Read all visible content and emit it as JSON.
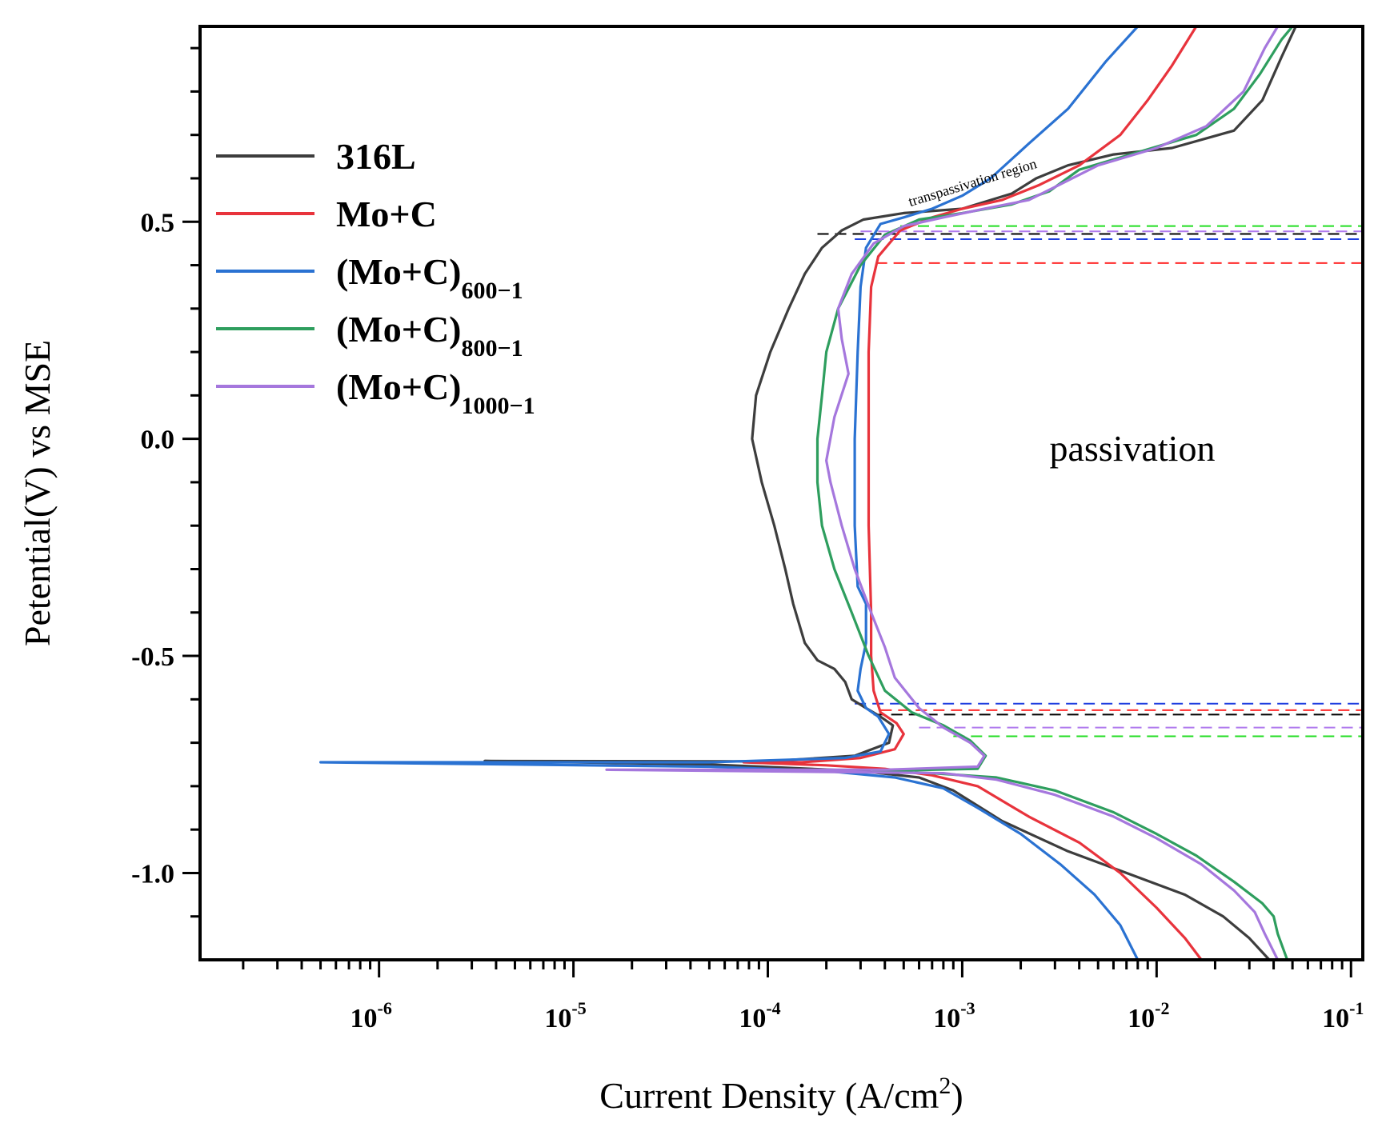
{
  "chart_data": {
    "type": "line",
    "title": "",
    "xlabel": "Current Density (A/cm",
    "xlabel_sup": "2",
    "xlabel_end": ")",
    "ylabel": "Petential(V) vs MSE",
    "xscale": "log",
    "xlim": [
      1.2e-07,
      0.115
    ],
    "ylim": [
      -1.2,
      0.95
    ],
    "x_ticks": [
      {
        "value": 1e-06,
        "base": "10",
        "exp": "-6"
      },
      {
        "value": 1e-05,
        "base": "10",
        "exp": "-5"
      },
      {
        "value": 0.0001,
        "base": "10",
        "exp": "-4"
      },
      {
        "value": 0.001,
        "base": "10",
        "exp": "-3"
      },
      {
        "value": 0.01,
        "base": "10",
        "exp": "-2"
      },
      {
        "value": 0.1,
        "base": "10",
        "exp": "-1"
      }
    ],
    "y_ticks": [
      {
        "value": 0.5,
        "label": "0.5"
      },
      {
        "value": 0.0,
        "label": "0.0"
      },
      {
        "value": -0.5,
        "label": "-0.5"
      },
      {
        "value": -1.0,
        "label": "-1.0"
      }
    ],
    "legend": {
      "position": "top-left"
    },
    "series": [
      {
        "name": "316L",
        "name_sub": "",
        "color": "#3d3d3d",
        "points": [
          [
            0.038,
            -1.2
          ],
          [
            0.03,
            -1.15
          ],
          [
            0.022,
            -1.1
          ],
          [
            0.014,
            -1.05
          ],
          [
            0.007,
            -1.0
          ],
          [
            0.0035,
            -0.95
          ],
          [
            0.0016,
            -0.88
          ],
          [
            0.0009,
            -0.81
          ],
          [
            0.0006,
            -0.78
          ],
          [
            0.0003,
            -0.765
          ],
          [
            5e-05,
            -0.75
          ],
          [
            3.5e-06,
            -0.742
          ],
          [
            0.0001,
            -0.743
          ],
          [
            0.00028,
            -0.73
          ],
          [
            0.00042,
            -0.7
          ],
          [
            0.00044,
            -0.66
          ],
          [
            0.00038,
            -0.64
          ],
          [
            0.00032,
            -0.62
          ],
          [
            0.00027,
            -0.6
          ],
          [
            0.00025,
            -0.56
          ],
          [
            0.00022,
            -0.53
          ],
          [
            0.00018,
            -0.51
          ],
          [
            0.000155,
            -0.47
          ],
          [
            0.000135,
            -0.38
          ],
          [
            0.000123,
            -0.3
          ],
          [
            0.000108,
            -0.2
          ],
          [
            9.3e-05,
            -0.1
          ],
          [
            8.3e-05,
            0.0
          ],
          [
            8.7e-05,
            0.1
          ],
          [
            0.000103,
            0.2
          ],
          [
            0.000128,
            0.3
          ],
          [
            0.000155,
            0.38
          ],
          [
            0.00019,
            0.44
          ],
          [
            0.00024,
            0.48
          ],
          [
            0.00031,
            0.505
          ],
          [
            0.0005,
            0.52
          ],
          [
            0.001,
            0.53
          ],
          [
            0.0018,
            0.565
          ],
          [
            0.0024,
            0.6
          ],
          [
            0.0035,
            0.63
          ],
          [
            0.006,
            0.655
          ],
          [
            0.012,
            0.67
          ],
          [
            0.025,
            0.71
          ],
          [
            0.035,
            0.78
          ],
          [
            0.044,
            0.88
          ],
          [
            0.052,
            0.95
          ]
        ]
      },
      {
        "name": "Mo+C",
        "name_sub": "",
        "color": "#e8333c",
        "points": [
          [
            0.017,
            -1.2
          ],
          [
            0.014,
            -1.15
          ],
          [
            0.01,
            -1.08
          ],
          [
            0.0065,
            -1.0
          ],
          [
            0.004,
            -0.93
          ],
          [
            0.0022,
            -0.87
          ],
          [
            0.0012,
            -0.8
          ],
          [
            0.0007,
            -0.775
          ],
          [
            0.0004,
            -0.76
          ],
          [
            0.0002,
            -0.752
          ],
          [
            7.5e-05,
            -0.745
          ],
          [
            0.00015,
            -0.745
          ],
          [
            0.0003,
            -0.735
          ],
          [
            0.00045,
            -0.715
          ],
          [
            0.0005,
            -0.68
          ],
          [
            0.00046,
            -0.655
          ],
          [
            0.00038,
            -0.63
          ],
          [
            0.00035,
            -0.58
          ],
          [
            0.00034,
            -0.5
          ],
          [
            0.00034,
            -0.4
          ],
          [
            0.00033,
            -0.2
          ],
          [
            0.00033,
            0.0
          ],
          [
            0.00033,
            0.2
          ],
          [
            0.00034,
            0.35
          ],
          [
            0.00037,
            0.42
          ],
          [
            0.00048,
            0.48
          ],
          [
            0.0007,
            0.51
          ],
          [
            0.001,
            0.53
          ],
          [
            0.0016,
            0.55
          ],
          [
            0.0025,
            0.585
          ],
          [
            0.004,
            0.63
          ],
          [
            0.0065,
            0.7
          ],
          [
            0.009,
            0.78
          ],
          [
            0.012,
            0.86
          ],
          [
            0.016,
            0.95
          ]
        ]
      },
      {
        "name": "(Mo+C)",
        "name_sub": "600−1",
        "color": "#2a72d2",
        "points": [
          [
            0.008,
            -1.2
          ],
          [
            0.0065,
            -1.12
          ],
          [
            0.0048,
            -1.05
          ],
          [
            0.0032,
            -0.98
          ],
          [
            0.002,
            -0.91
          ],
          [
            0.0012,
            -0.85
          ],
          [
            0.0008,
            -0.805
          ],
          [
            0.00045,
            -0.78
          ],
          [
            0.0002,
            -0.765
          ],
          [
            5e-05,
            -0.755
          ],
          [
            5e-07,
            -0.745
          ],
          [
            5e-05,
            -0.745
          ],
          [
            0.00025,
            -0.735
          ],
          [
            0.00038,
            -0.72
          ],
          [
            0.00042,
            -0.68
          ],
          [
            0.00037,
            -0.64
          ],
          [
            0.00032,
            -0.62
          ],
          [
            0.00029,
            -0.58
          ],
          [
            0.0003,
            -0.53
          ],
          [
            0.00032,
            -0.47
          ],
          [
            0.00032,
            -0.38
          ],
          [
            0.00029,
            -0.34
          ],
          [
            0.00028,
            -0.2
          ],
          [
            0.00028,
            0.0
          ],
          [
            0.00029,
            0.2
          ],
          [
            0.0003,
            0.35
          ],
          [
            0.00032,
            0.44
          ],
          [
            0.00038,
            0.495
          ],
          [
            0.0005,
            0.51
          ],
          [
            0.0007,
            0.53
          ],
          [
            0.001,
            0.56
          ],
          [
            0.0014,
            0.6
          ],
          [
            0.0022,
            0.68
          ],
          [
            0.0035,
            0.76
          ],
          [
            0.0055,
            0.87
          ],
          [
            0.008,
            0.95
          ]
        ]
      },
      {
        "name": "(Mo+C)",
        "name_sub": "800−1",
        "color": "#2e9e5e",
        "points": [
          [
            0.047,
            -1.2
          ],
          [
            0.042,
            -1.14
          ],
          [
            0.04,
            -1.1
          ],
          [
            0.035,
            -1.07
          ],
          [
            0.025,
            -1.02
          ],
          [
            0.016,
            -0.96
          ],
          [
            0.01,
            -0.91
          ],
          [
            0.006,
            -0.86
          ],
          [
            0.003,
            -0.81
          ],
          [
            0.0015,
            -0.78
          ],
          [
            0.0007,
            -0.77
          ],
          [
            0.00035,
            -0.765
          ],
          [
            0.0012,
            -0.76
          ],
          [
            0.00132,
            -0.73
          ],
          [
            0.0011,
            -0.695
          ],
          [
            0.0008,
            -0.66
          ],
          [
            0.00055,
            -0.63
          ],
          [
            0.0004,
            -0.58
          ],
          [
            0.00033,
            -0.5
          ],
          [
            0.00027,
            -0.4
          ],
          [
            0.00022,
            -0.3
          ],
          [
            0.00019,
            -0.2
          ],
          [
            0.00018,
            -0.1
          ],
          [
            0.00018,
            0.0
          ],
          [
            0.00019,
            0.1
          ],
          [
            0.0002,
            0.2
          ],
          [
            0.00023,
            0.3
          ],
          [
            0.0003,
            0.4
          ],
          [
            0.0004,
            0.47
          ],
          [
            0.0006,
            0.505
          ],
          [
            0.001,
            0.52
          ],
          [
            0.0018,
            0.54
          ],
          [
            0.0028,
            0.57
          ],
          [
            0.004,
            0.62
          ],
          [
            0.008,
            0.66
          ],
          [
            0.016,
            0.7
          ],
          [
            0.025,
            0.76
          ],
          [
            0.034,
            0.84
          ],
          [
            0.044,
            0.92
          ],
          [
            0.05,
            0.95
          ]
        ]
      },
      {
        "name": "(Mo+C)",
        "name_sub": "1000−1",
        "color": "#a577dd",
        "points": [
          [
            0.042,
            -1.2
          ],
          [
            0.036,
            -1.14
          ],
          [
            0.032,
            -1.09
          ],
          [
            0.025,
            -1.04
          ],
          [
            0.017,
            -0.98
          ],
          [
            0.01,
            -0.92
          ],
          [
            0.006,
            -0.87
          ],
          [
            0.003,
            -0.82
          ],
          [
            0.0015,
            -0.785
          ],
          [
            0.0008,
            -0.77
          ],
          [
            1.48e-05,
            -0.762
          ],
          [
            0.0004,
            -0.762
          ],
          [
            0.0012,
            -0.755
          ],
          [
            0.0013,
            -0.73
          ],
          [
            0.0011,
            -0.7
          ],
          [
            0.0008,
            -0.665
          ],
          [
            0.0006,
            -0.62
          ],
          [
            0.00045,
            -0.55
          ],
          [
            0.0004,
            -0.48
          ],
          [
            0.00034,
            -0.4
          ],
          [
            0.00028,
            -0.3
          ],
          [
            0.00024,
            -0.2
          ],
          [
            0.00021,
            -0.1
          ],
          [
            0.0002,
            -0.05
          ],
          [
            0.00022,
            0.05
          ],
          [
            0.00026,
            0.15
          ],
          [
            0.00024,
            0.23
          ],
          [
            0.00023,
            0.3
          ],
          [
            0.00027,
            0.38
          ],
          [
            0.00035,
            0.45
          ],
          [
            0.0005,
            0.49
          ],
          [
            0.0008,
            0.51
          ],
          [
            0.0013,
            0.53
          ],
          [
            0.0022,
            0.55
          ],
          [
            0.003,
            0.58
          ],
          [
            0.005,
            0.63
          ],
          [
            0.01,
            0.67
          ],
          [
            0.018,
            0.72
          ],
          [
            0.028,
            0.8
          ],
          [
            0.036,
            0.9
          ],
          [
            0.042,
            0.95
          ]
        ]
      }
    ],
    "reference_lines": [
      {
        "x_start": 0.00018,
        "x_end": 0.115,
        "y": 0.472,
        "color": "#000000"
      },
      {
        "x_start": 0.00028,
        "x_end": 0.115,
        "y": 0.46,
        "color": "#1f3fe0"
      },
      {
        "x_start": 0.00036,
        "x_end": 0.115,
        "y": 0.405,
        "color": "#ff2b2b"
      },
      {
        "x_start": 0.00048,
        "x_end": 0.115,
        "y": 0.49,
        "color": "#22dd22"
      },
      {
        "x_start": 0.0003,
        "x_end": 0.115,
        "y": 0.478,
        "color": "#b07aee"
      },
      {
        "x_start": 0.00028,
        "x_end": 0.115,
        "y": -0.61,
        "color": "#1f3fe0"
      },
      {
        "x_start": 0.00038,
        "x_end": 0.115,
        "y": -0.625,
        "color": "#ff2b2b"
      },
      {
        "x_start": 0.00035,
        "x_end": 0.115,
        "y": -0.635,
        "color": "#000000"
      },
      {
        "x_start": 0.0006,
        "x_end": 0.115,
        "y": -0.665,
        "color": "#b07aee"
      },
      {
        "x_start": 0.0009,
        "x_end": 0.115,
        "y": -0.685,
        "color": "#22dd22"
      }
    ],
    "annotations": [
      {
        "text": "passivation",
        "x": 0.0075,
        "y": -0.05,
        "style": "big"
      },
      {
        "text": "transpassivation region",
        "x": 0.00054,
        "y": 0.535,
        "style": "small"
      }
    ]
  }
}
